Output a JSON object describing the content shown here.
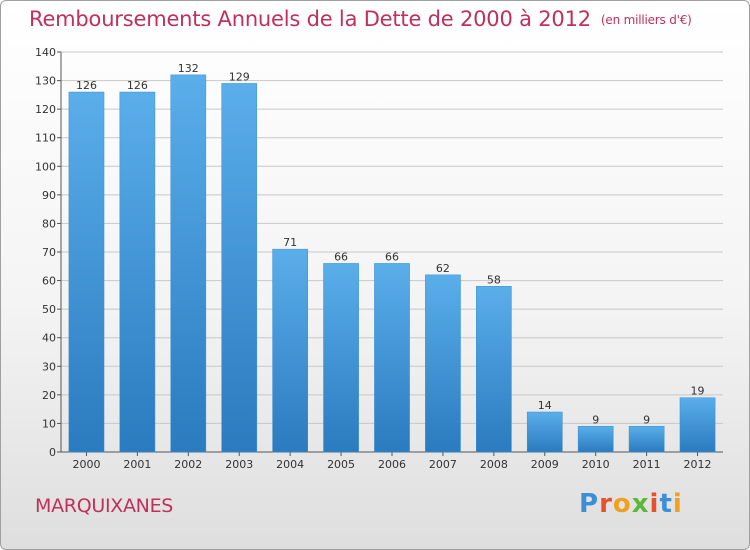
{
  "header": {
    "title": "Remboursements Annuels de la Dette de 2000 à 2012",
    "subtitle": "(en milliers d'€)"
  },
  "footer": {
    "commune": "MARQUIXANES",
    "logo_text": "Proxiti"
  },
  "colors": {
    "bar_top": "#5aaeea",
    "bar_bottom": "#2a7bbf",
    "title": "#c0305a",
    "grid": "#c8c8c8"
  },
  "chart_data": {
    "type": "bar",
    "title": "Remboursements Annuels de la Dette de 2000 à 2012",
    "unit": "(en milliers d'€)",
    "categories": [
      "2000",
      "2001",
      "2002",
      "2003",
      "2004",
      "2005",
      "2006",
      "2007",
      "2008",
      "2009",
      "2010",
      "2011",
      "2012"
    ],
    "values": [
      126,
      126,
      132,
      129,
      71,
      66,
      66,
      62,
      58,
      14,
      9,
      9,
      19
    ],
    "ylim": [
      0,
      140
    ],
    "yticks": [
      0,
      10,
      20,
      30,
      40,
      50,
      60,
      70,
      80,
      90,
      100,
      110,
      120,
      130,
      140
    ],
    "grid": true,
    "legend": "none"
  }
}
